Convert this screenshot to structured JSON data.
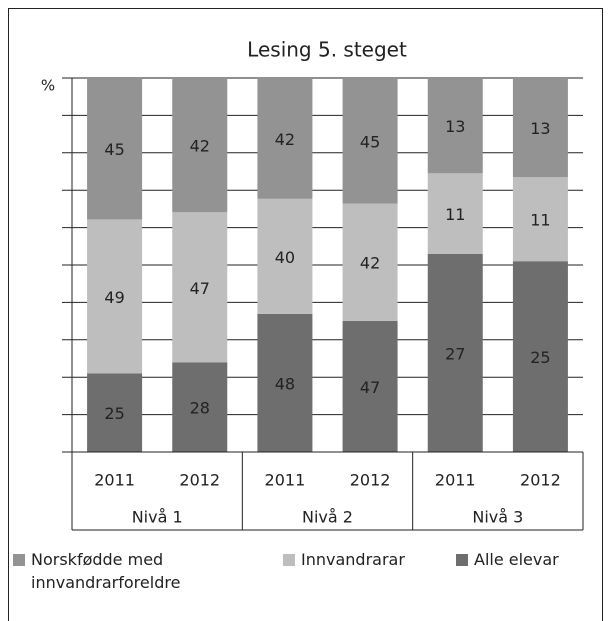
{
  "chart_data": {
    "type": "stacked_bar_percent",
    "title": "Lesing 5. steget",
    "y_label": "%",
    "categories": [
      "2011",
      "2012",
      "2011",
      "2012",
      "2011",
      "2012"
    ],
    "groups": [
      "Nivå 1",
      "Nivå 2",
      "Nivå 3"
    ],
    "series": [
      {
        "name": "Norskfødde med innvandrarforeldre",
        "color": "#939393",
        "values": [
          45,
          42,
          42,
          45,
          13,
          13
        ]
      },
      {
        "name": "Innvandrarar",
        "color": "#bebebe",
        "values": [
          49,
          47,
          40,
          42,
          11,
          11
        ]
      },
      {
        "name": "Alle elevar",
        "color": "#6e6e6e",
        "values": [
          25,
          28,
          48,
          47,
          27,
          25
        ]
      }
    ],
    "ylim": [
      0,
      100
    ],
    "yticks": [
      0,
      10,
      20,
      30,
      40,
      50,
      60,
      70,
      80,
      90,
      100
    ],
    "grid": true
  }
}
